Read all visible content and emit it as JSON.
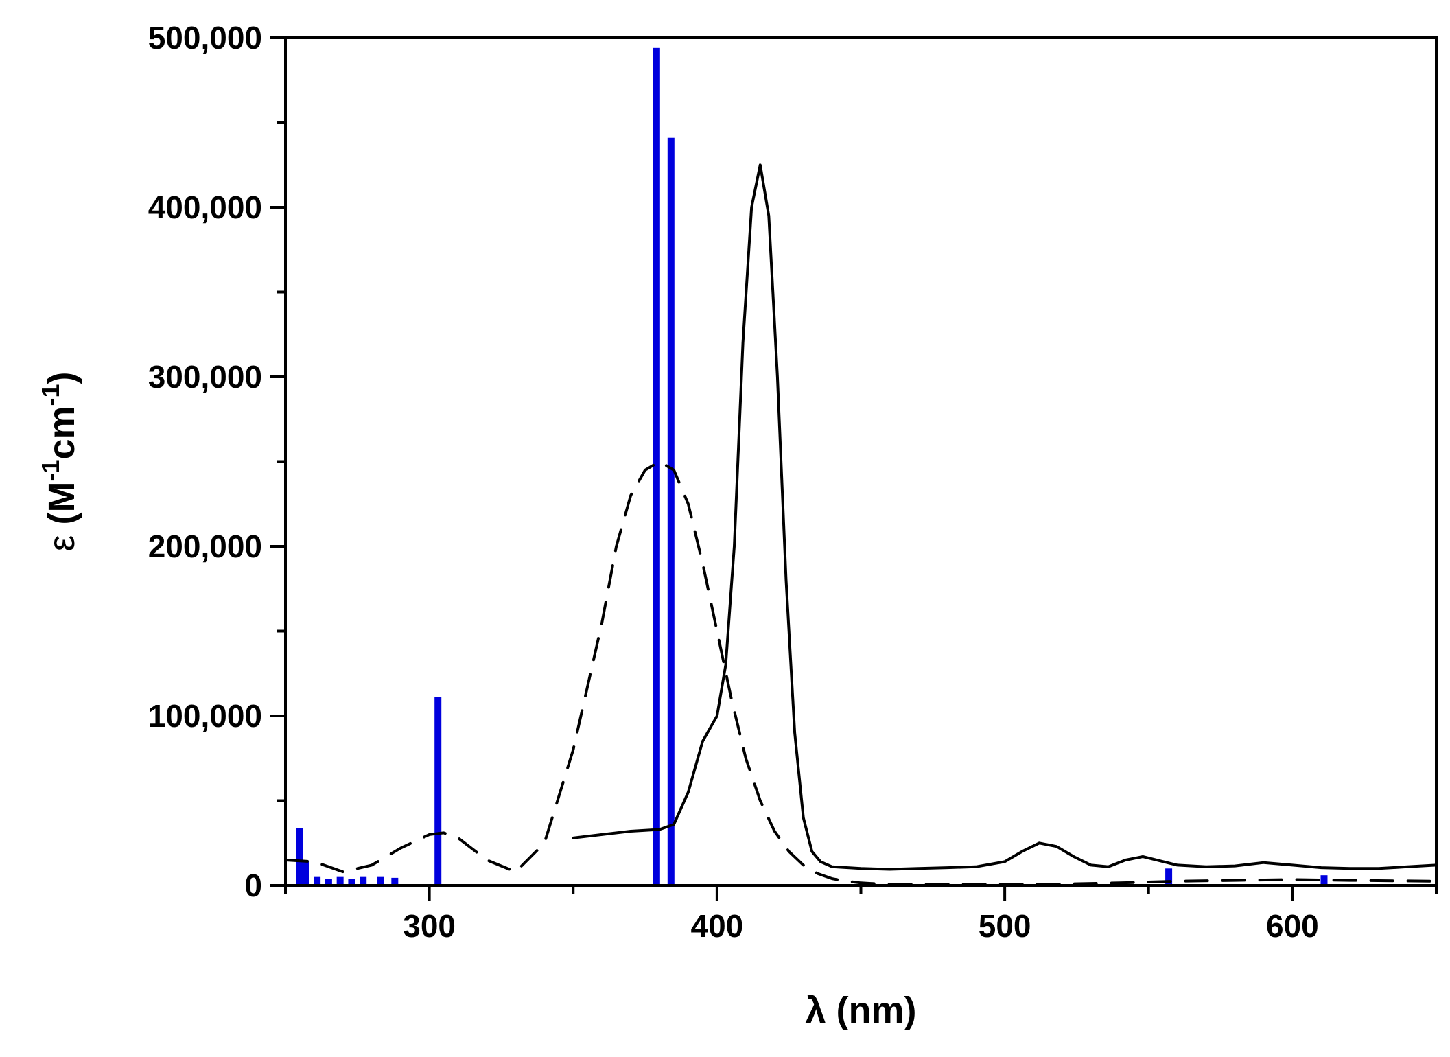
{
  "chart_data": {
    "type": "line",
    "title": "",
    "xlabel": "λ (nm)",
    "ylabel": {
      "symbol": "ε",
      "unit_open": " (M",
      "exp1": "-1",
      "unit_mid": "cm",
      "exp2": "-1",
      "unit_close": ")"
    },
    "xlim": [
      250,
      650
    ],
    "ylim": [
      0,
      500000
    ],
    "x_ticks": [
      300,
      400,
      500,
      600
    ],
    "x_tick_labels": [
      "300",
      "400",
      "500",
      "600"
    ],
    "y_ticks": [
      0,
      100000,
      200000,
      300000,
      400000,
      500000
    ],
    "y_tick_labels": [
      "0",
      "100,000",
      "200,000",
      "300,000",
      "400,000",
      "500,000"
    ],
    "grid": false,
    "legend": "none",
    "series": [
      {
        "style": "solid",
        "color": "#000000",
        "x": [
          350,
          360,
          370,
          375,
          380,
          385,
          390,
          395,
          400,
          403,
          406,
          409,
          412,
          415,
          418,
          421,
          424,
          427,
          430,
          433,
          436,
          440,
          450,
          460,
          470,
          480,
          490,
          500,
          506,
          512,
          518,
          524,
          530,
          536,
          542,
          548,
          554,
          560,
          570,
          580,
          590,
          600,
          610,
          620,
          630,
          640,
          650
        ],
        "y": [
          28000,
          30000,
          32000,
          32500,
          33000,
          36000,
          55000,
          85000,
          100000,
          130000,
          200000,
          320000,
          400000,
          425000,
          395000,
          300000,
          180000,
          90000,
          40000,
          20000,
          14000,
          11000,
          10000,
          9500,
          10000,
          10500,
          11000,
          14000,
          20000,
          25000,
          23000,
          17000,
          12000,
          11000,
          15000,
          17000,
          14500,
          12000,
          11000,
          11500,
          13500,
          12000,
          10500,
          10000,
          10000,
          11000,
          12000
        ]
      },
      {
        "style": "dashed",
        "color": "#000000",
        "x": [
          250,
          260,
          270,
          280,
          290,
          300,
          305,
          310,
          320,
          330,
          340,
          350,
          360,
          365,
          370,
          375,
          380,
          385,
          390,
          395,
          400,
          405,
          410,
          415,
          420,
          425,
          430,
          435,
          440,
          445,
          450,
          455,
          460,
          480,
          500,
          520,
          540,
          560,
          580,
          600,
          620,
          650
        ],
        "y": [
          15000,
          14000,
          8000,
          12000,
          22000,
          30000,
          31000,
          28000,
          15000,
          8000,
          25000,
          80000,
          155000,
          200000,
          230000,
          245000,
          250000,
          245000,
          225000,
          190000,
          150000,
          110000,
          75000,
          50000,
          32000,
          20000,
          12000,
          7000,
          4000,
          2500,
          1500,
          1000,
          800,
          700,
          600,
          800,
          1500,
          2500,
          3000,
          3500,
          3000,
          2500
        ]
      }
    ],
    "sticks": {
      "color": "#0000dd",
      "x": [
        255,
        257,
        261,
        265,
        269,
        273,
        277,
        283,
        288,
        303,
        379,
        384,
        557,
        611
      ],
      "y": [
        34000,
        14000,
        5000,
        4000,
        5000,
        4000,
        5000,
        5000,
        4500,
        111000,
        494000,
        441000,
        10000,
        6000
      ]
    }
  }
}
